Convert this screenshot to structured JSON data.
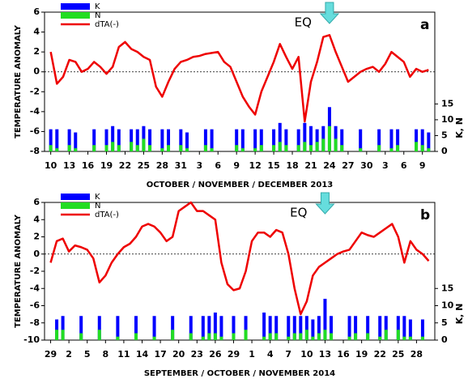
{
  "chart_data": [
    {
      "type": "combo",
      "panel_label": "a",
      "x_label": "OCTOBER / NOVEMBER / DECEMBER  2013",
      "y_label": "TEMPERATURE  ANOMALY",
      "y2_label": "K, N",
      "annotation": {
        "text": "EQ",
        "x": 45
      },
      "categories": [
        "10",
        null,
        null,
        "13",
        null,
        null,
        "16",
        null,
        null,
        "19",
        null,
        null,
        "22",
        null,
        null,
        "25",
        null,
        null,
        "28",
        null,
        null,
        "31",
        null,
        null,
        "3",
        null,
        null,
        "6",
        null,
        null,
        "9",
        null,
        null,
        "12",
        null,
        null,
        "15",
        null,
        null,
        "18",
        null,
        null,
        "21",
        null,
        null,
        "24",
        null,
        null,
        "27",
        null,
        null,
        "30",
        null,
        null,
        "3",
        null,
        null,
        "6",
        null,
        null,
        "9",
        null
      ],
      "ylim": [
        -8,
        6
      ],
      "yticks": [
        -8,
        -6,
        -4,
        -2,
        0,
        2,
        4,
        6
      ],
      "y2lim": [
        0,
        44
      ],
      "y2ticks": [
        0,
        5,
        10,
        15
      ],
      "series": [
        {
          "name": "K",
          "color": "#0000ff",
          "axis": "y2",
          "values": [
            7,
            7,
            0,
            7,
            6,
            0,
            0,
            7,
            0,
            7,
            8,
            7,
            0,
            7,
            7,
            8,
            7,
            0,
            7,
            7,
            0,
            7,
            6,
            0,
            0,
            7,
            7,
            0,
            0,
            0,
            7,
            7,
            0,
            7,
            7,
            0,
            7,
            9,
            7,
            0,
            7,
            9,
            8,
            7,
            8,
            14,
            8,
            7,
            0,
            0,
            7,
            0,
            0,
            7,
            0,
            7,
            7,
            0,
            0,
            7,
            7,
            6
          ]
        },
        {
          "name": "N",
          "color": "#22dd22",
          "axis": "y2",
          "values": [
            2,
            1,
            0,
            2,
            1,
            0,
            0,
            2,
            0,
            2,
            3,
            2,
            0,
            3,
            2,
            4,
            2,
            0,
            1,
            2,
            0,
            2,
            1,
            0,
            0,
            2,
            1,
            0,
            0,
            0,
            2,
            1,
            0,
            1,
            2,
            0,
            2,
            3,
            2,
            0,
            2,
            3,
            2,
            3,
            4,
            8,
            4,
            2,
            0,
            0,
            1,
            0,
            0,
            2,
            0,
            1,
            2,
            0,
            0,
            3,
            2,
            1
          ]
        },
        {
          "name": "dTA(-)",
          "color": "#ee0000",
          "values": [
            2,
            -1.2,
            -0.5,
            1.2,
            1,
            0,
            0.3,
            1,
            0.5,
            -0.2,
            0.5,
            2.5,
            3,
            2.3,
            2,
            1.5,
            1.2,
            -1.5,
            -2.5,
            -1,
            0.3,
            1,
            1.2,
            1.5,
            1.6,
            1.8,
            1.9,
            2,
            1,
            0.5,
            -1,
            -2.5,
            -3.5,
            -4.3,
            -2,
            -0.5,
            1,
            2.8,
            1.5,
            0.3,
            1.5,
            -5,
            -1,
            1,
            3.5,
            3.7,
            2,
            0.5,
            -1,
            -0.5,
            0,
            0.3,
            0.5,
            0,
            0.8,
            2,
            1.5,
            1,
            -0.5,
            0.3,
            0,
            0.2
          ]
        }
      ]
    },
    {
      "type": "combo",
      "panel_label": "b",
      "x_label": "SEPTEMBER / OCTOBER / NOVEMBER 2014",
      "y_label": "TEMPERATURE  ANOMALY",
      "y2_label": "K, N",
      "annotation": {
        "text": "EQ",
        "x": 45
      },
      "categories": [
        "29",
        null,
        null,
        "2",
        null,
        null,
        "5",
        null,
        null,
        "8",
        null,
        null,
        "11",
        null,
        null,
        "14",
        null,
        null,
        "17",
        null,
        null,
        "20",
        null,
        null,
        "23",
        null,
        null,
        "26",
        null,
        null,
        "29",
        null,
        null,
        "1",
        null,
        null,
        "4",
        null,
        null,
        "7",
        null,
        null,
        "10",
        null,
        null,
        "13",
        null,
        null,
        "16",
        null,
        null,
        "19",
        null,
        null,
        "22",
        null,
        null,
        "25",
        null,
        null,
        "28",
        null,
        null
      ],
      "ylim": [
        -10,
        6
      ],
      "yticks": [
        -10,
        -8,
        -6,
        -4,
        -2,
        0,
        2,
        4,
        6
      ],
      "y2lim": [
        0,
        40
      ],
      "y2ticks": [
        0,
        5,
        10,
        15
      ],
      "series": [
        {
          "name": "K",
          "color": "#0000ff",
          "axis": "y2",
          "values": [
            0,
            6,
            7,
            0,
            0,
            7,
            0,
            0,
            7,
            0,
            0,
            7,
            0,
            0,
            7,
            0,
            0,
            7,
            0,
            0,
            7,
            0,
            0,
            7,
            0,
            7,
            7,
            8,
            7,
            0,
            7,
            0,
            7,
            0,
            0,
            8,
            7,
            7,
            0,
            7,
            7,
            7,
            7,
            6,
            7,
            12,
            7,
            0,
            0,
            7,
            7,
            0,
            7,
            0,
            7,
            7,
            0,
            7,
            7,
            6,
            0,
            6,
            0
          ]
        },
        {
          "name": "N",
          "color": "#22dd22",
          "axis": "y2",
          "values": [
            0,
            3,
            3,
            0,
            0,
            2,
            0,
            0,
            3,
            0,
            0,
            1,
            0,
            0,
            2,
            0,
            0,
            1,
            0,
            0,
            3,
            0,
            0,
            2,
            0,
            1,
            2,
            2,
            1,
            0,
            2,
            0,
            3,
            0,
            0,
            1,
            2,
            2,
            0,
            1,
            2,
            2,
            3,
            1,
            2,
            3,
            2,
            0,
            0,
            1,
            2,
            0,
            2,
            0,
            1,
            3,
            0,
            3,
            1,
            1,
            0,
            1,
            0
          ]
        },
        {
          "name": "dTA(-)",
          "color": "#ee0000",
          "values": [
            -1,
            1.5,
            1.8,
            0.3,
            1,
            0.8,
            0.5,
            -0.5,
            -3.3,
            -2.5,
            -1,
            0,
            0.8,
            1.2,
            2,
            3.2,
            3.5,
            3.2,
            2.5,
            1.5,
            2,
            5,
            5.5,
            6,
            5,
            5,
            4.5,
            4,
            -1,
            -3.5,
            -4.2,
            -4,
            -2,
            1.5,
            2.5,
            2.5,
            2,
            2.8,
            2.5,
            0,
            -4,
            -7,
            -5.5,
            -2.5,
            -1.5,
            -1,
            -0.5,
            0,
            0.3,
            0.5,
            1.5,
            2.5,
            2.2,
            2,
            2.5,
            3,
            3.5,
            2,
            -1,
            1.5,
            0.5,
            0,
            -0.8
          ]
        }
      ]
    }
  ]
}
